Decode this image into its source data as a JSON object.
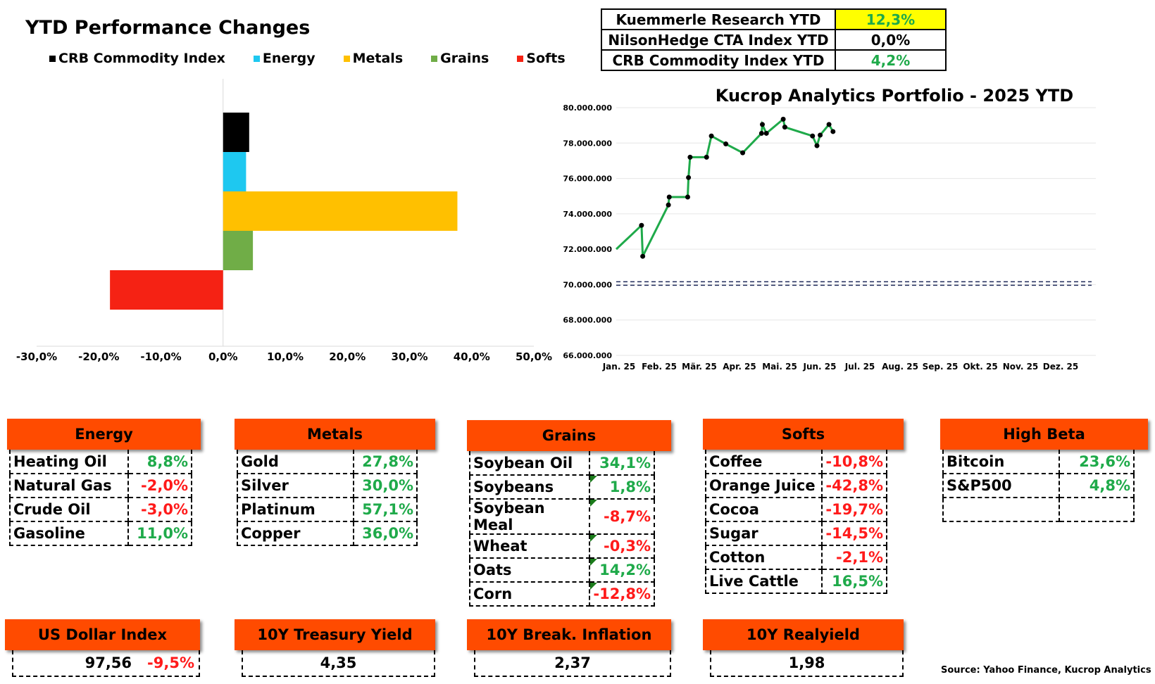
{
  "chart1": {
    "title": "YTD Performance Changes",
    "legend": [
      {
        "label": "CRB Commodity Index",
        "color": "#000000"
      },
      {
        "label": "Energy",
        "color": "#1ec8f0"
      },
      {
        "label": "Metals",
        "color": "#ffc000"
      },
      {
        "label": "Grains",
        "color": "#70ad47"
      },
      {
        "label": "Softs",
        "color": "#f52214"
      }
    ]
  },
  "ytd_summary": [
    {
      "label": "Kuemmerle Research YTD",
      "value": "12,3%",
      "highlight": "#ffff00",
      "value_color": "#1faa4a"
    },
    {
      "label": "NilsonHedge CTA Index YTD",
      "value": "0,0%",
      "highlight": "#ffffff",
      "value_color": "#000000"
    },
    {
      "label": "CRB Commodity Index YTD",
      "value": "4,2%",
      "highlight": "#ffffff",
      "value_color": "#1faa4a"
    }
  ],
  "chart_data": [
    {
      "type": "bar",
      "orientation": "horizontal",
      "title": "YTD Performance Changes",
      "categories": [
        "CRB Commodity Index",
        "Energy",
        "Metals",
        "Grains",
        "Softs"
      ],
      "values": [
        4.2,
        3.7,
        37.7,
        4.8,
        -18.2
      ],
      "colors": [
        "#000000",
        "#1ec8f0",
        "#ffc000",
        "#70ad47",
        "#f52214"
      ],
      "xlim": [
        -30,
        50
      ],
      "xticks": [
        "-30,0%",
        "-20,0%",
        "-10,0%",
        "0,0%",
        "10,0%",
        "20,0%",
        "30,0%",
        "40,0%",
        "50,0%"
      ]
    },
    {
      "type": "line",
      "title": "Kucrop Analytics Portfolio - 2025 YTD",
      "ylim": [
        66000000,
        80000000
      ],
      "yticks": [
        "80.000.000",
        "78.000.000",
        "76.000.000",
        "74.000.000",
        "72.000.000",
        "70.000.000",
        "68.000.000",
        "66.000.000"
      ],
      "xticks": [
        "Jan. 25",
        "Feb. 25",
        "Mär. 25",
        "Apr. 25",
        "Mai. 25",
        "Jun. 25",
        "Jul. 25",
        "Aug. 25",
        "Sep. 25",
        "Okt. 25",
        "Nov. 25",
        "Dez. 25"
      ],
      "baseline": 70000000,
      "series": [
        {
          "color": "#1faa4a",
          "points": [
            [
              0.0,
              72000000
            ],
            [
              0.63,
              73350000
            ],
            [
              0.66,
              71600000
            ],
            [
              1.3,
              74500000
            ],
            [
              1.32,
              74950000
            ],
            [
              1.78,
              74950000
            ],
            [
              1.8,
              76050000
            ],
            [
              1.84,
              77200000
            ],
            [
              2.25,
              77200000
            ],
            [
              2.37,
              78400000
            ],
            [
              2.73,
              77950000
            ],
            [
              3.15,
              77450000
            ],
            [
              3.62,
              78550000
            ],
            [
              3.64,
              79050000
            ],
            [
              3.74,
              78550000
            ],
            [
              4.16,
              79350000
            ],
            [
              4.2,
              78900000
            ],
            [
              4.89,
              78400000
            ],
            [
              5.0,
              77850000
            ],
            [
              5.08,
              78450000
            ],
            [
              5.3,
              79050000
            ],
            [
              5.4,
              78650000
            ]
          ]
        }
      ]
    }
  ],
  "cards": {
    "energy": {
      "title": "Energy",
      "rows": [
        {
          "name": "Heating Oil",
          "value": "8,8%",
          "sign": "pos"
        },
        {
          "name": "Natural Gas",
          "value": "-2,0%",
          "sign": "neg"
        },
        {
          "name": "Crude Oil",
          "value": "-3,0%",
          "sign": "neg"
        },
        {
          "name": "Gasoline",
          "value": "11,0%",
          "sign": "pos"
        }
      ]
    },
    "metals": {
      "title": "Metals",
      "rows": [
        {
          "name": "Gold",
          "value": "27,8%",
          "sign": "pos"
        },
        {
          "name": "Silver",
          "value": "30,0%",
          "sign": "pos"
        },
        {
          "name": "Platinum",
          "value": "57,1%",
          "sign": "pos"
        },
        {
          "name": "Copper",
          "value": "36,0%",
          "sign": "pos"
        }
      ]
    },
    "grains": {
      "title": "Grains",
      "rows": [
        {
          "name": "Soybean Oil",
          "value": "34,1%",
          "sign": "pos"
        },
        {
          "name": "Soybeans",
          "value": "1,8%",
          "sign": "pos"
        },
        {
          "name": "Soybean Meal",
          "value": "-8,7%",
          "sign": "neg"
        },
        {
          "name": "Wheat",
          "value": "-0,3%",
          "sign": "neg"
        },
        {
          "name": "Oats",
          "value": "14,2%",
          "sign": "pos"
        },
        {
          "name": "Corn",
          "value": "-12,8%",
          "sign": "neg"
        }
      ]
    },
    "softs": {
      "title": "Softs",
      "rows": [
        {
          "name": "Coffee",
          "value": "-10,8%",
          "sign": "neg"
        },
        {
          "name": "Orange Juice",
          "value": "-42,8%",
          "sign": "neg"
        },
        {
          "name": "Cocoa",
          "value": "-19,7%",
          "sign": "neg"
        },
        {
          "name": "Sugar",
          "value": "-14,5%",
          "sign": "neg"
        },
        {
          "name": "Cotton",
          "value": "-2,1%",
          "sign": "neg"
        },
        {
          "name": "Live Cattle",
          "value": "16,5%",
          "sign": "pos"
        }
      ]
    },
    "highbeta": {
      "title": "High Beta",
      "rows": [
        {
          "name": "Bitcoin",
          "value": "23,6%",
          "sign": "pos"
        },
        {
          "name": "S&P500",
          "value": "4,8%",
          "sign": "pos"
        },
        {
          "name": "",
          "value": "",
          "sign": "pos"
        }
      ]
    }
  },
  "indicators": {
    "usd": {
      "title": "US Dollar Index",
      "value": "97,56",
      "change": "-9,5%"
    },
    "treasury": {
      "title": "10Y Treasury Yield",
      "value": "4,35"
    },
    "inflation": {
      "title": "10Y Break. Inflation",
      "value": "2,37"
    },
    "realyield": {
      "title": "10Y Realyield",
      "value": "1,98"
    }
  },
  "source": "Source: Yahoo Finance, Kucrop Analytics"
}
